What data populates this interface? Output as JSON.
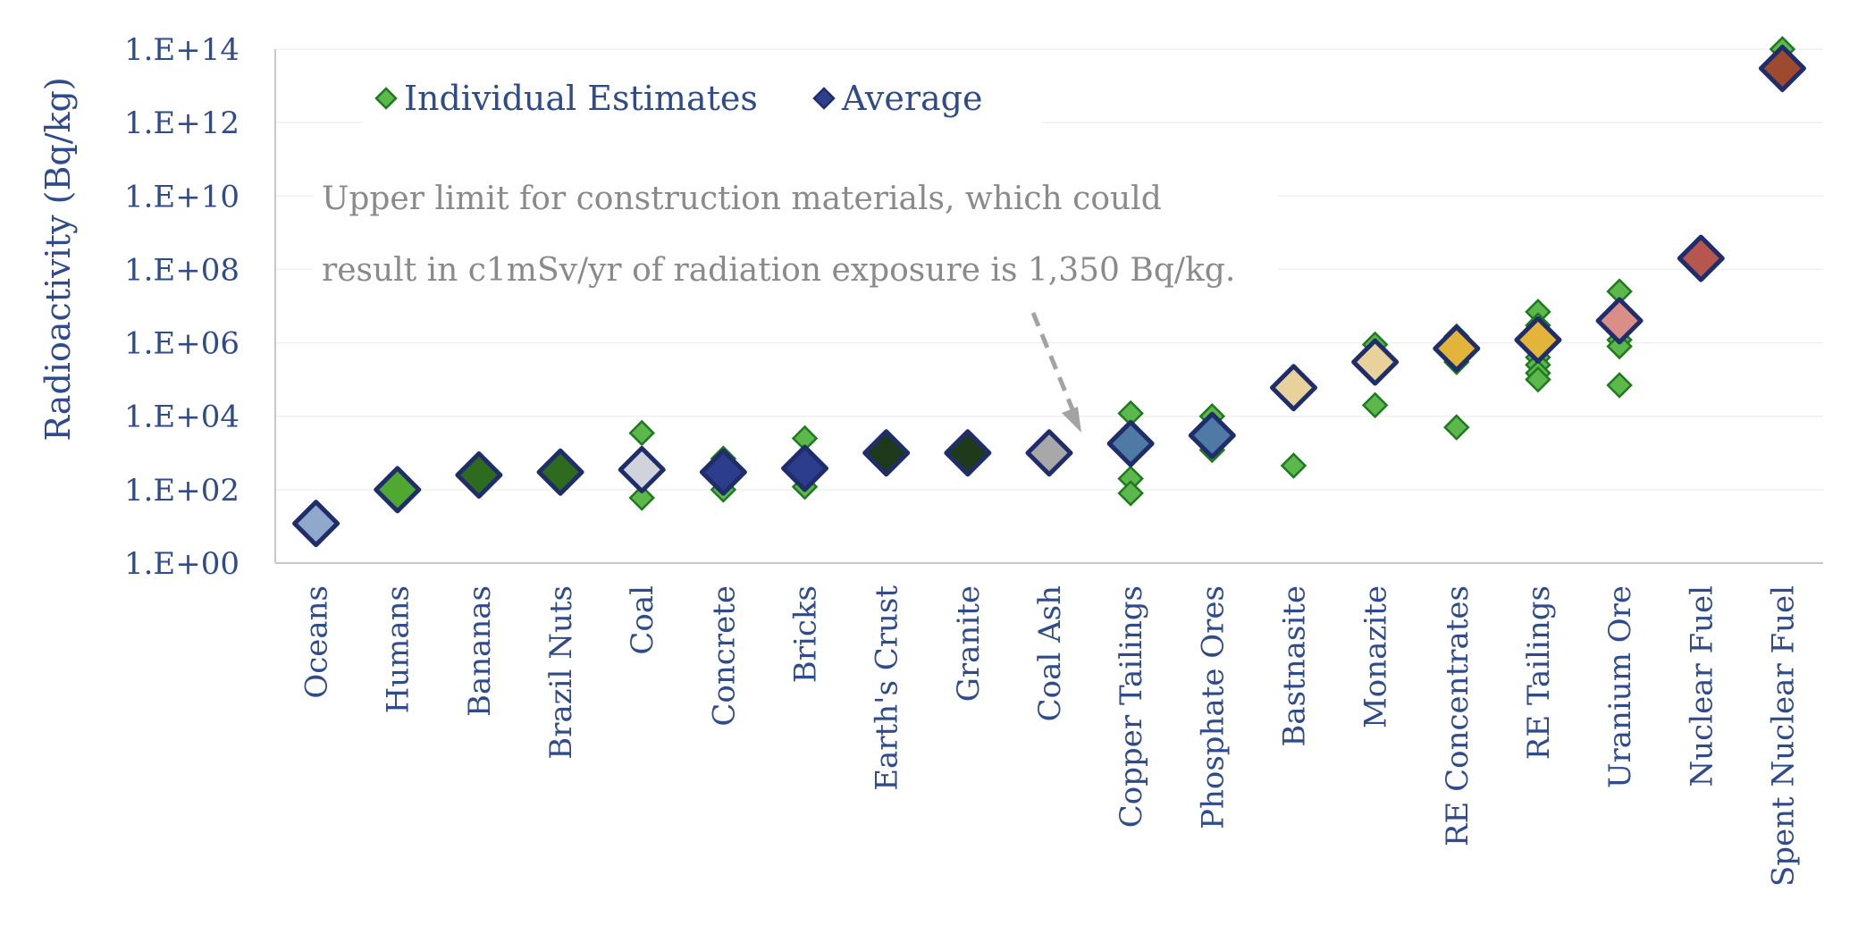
{
  "chart_data": {
    "type": "scatter",
    "scale": "log",
    "ylabel": "Radioactivity (Bq/kg)",
    "ylim": [
      1,
      100000000000000
    ],
    "yticks": [
      {
        "value": 1,
        "label": "1.E+00"
      },
      {
        "value": 100,
        "label": "1.E+02"
      },
      {
        "value": 10000,
        "label": "1.E+04"
      },
      {
        "value": 1000000,
        "label": "1.E+06"
      },
      {
        "value": 100000000,
        "label": "1.E+08"
      },
      {
        "value": 10000000000,
        "label": "1.E+10"
      },
      {
        "value": 1000000000000,
        "label": "1.E+12"
      },
      {
        "value": 100000000000000,
        "label": "1.E+14"
      }
    ],
    "grid": true,
    "legend_position": "top-left",
    "legend": [
      {
        "label": "Individual Estimates",
        "color": "#5cb84a"
      },
      {
        "label": "Average",
        "color": "#2e3f8c"
      }
    ],
    "annotation": {
      "line1": "Upper limit for construction materials, which could",
      "line2": "result in c1mSv/yr of radiation exposure is 1,350 Bq/kg."
    },
    "categories": [
      {
        "name": "Oceans",
        "average": 12,
        "avg_color": "#8fa8cc",
        "estimates": []
      },
      {
        "name": "Humans",
        "average": 100,
        "avg_color": "#4fa832",
        "estimates": [
          100
        ]
      },
      {
        "name": "Bananas",
        "average": 250,
        "avg_color": "#2e6b1f",
        "estimates": [
          150,
          250
        ]
      },
      {
        "name": "Brazil Nuts",
        "average": 300,
        "avg_color": "#2e6b1f",
        "estimates": [
          180,
          300
        ]
      },
      {
        "name": "Coal",
        "average": 350,
        "avg_color": "#d0d3dc",
        "estimates": [
          3500,
          60
        ]
      },
      {
        "name": "Concrete",
        "average": 300,
        "avg_color": "#2b3d8c",
        "estimates": [
          700,
          450,
          100
        ]
      },
      {
        "name": "Bricks",
        "average": 380,
        "avg_color": "#2b3d8c",
        "estimates": [
          2500,
          500,
          120
        ]
      },
      {
        "name": "Earth's Crust",
        "average": 1000,
        "avg_color": "#1f3a1a",
        "estimates": [
          600,
          800
        ]
      },
      {
        "name": "Granite",
        "average": 1000,
        "avg_color": "#1f3a1a",
        "estimates": [
          600,
          800
        ]
      },
      {
        "name": "Coal Ash",
        "average": 1000,
        "avg_color": "#a8a8a8",
        "estimates": [
          600,
          800
        ]
      },
      {
        "name": "Copper Tailings",
        "average": 1800,
        "avg_color": "#4f7aa6",
        "estimates": [
          12000,
          200,
          80
        ]
      },
      {
        "name": "Phosphate Ores",
        "average": 3000,
        "avg_color": "#4f7aa6",
        "estimates": [
          10000,
          1200
        ]
      },
      {
        "name": "Bastnasite",
        "average": 60000,
        "avg_color": "#e8d19a",
        "estimates": [
          450
        ]
      },
      {
        "name": "Monazite",
        "average": 300000,
        "avg_color": "#e8d19a",
        "estimates": [
          900000,
          20000
        ]
      },
      {
        "name": "RE Concentrates",
        "average": 700000,
        "avg_color": "#e3b43a",
        "estimates": [
          1500000,
          300000,
          5000
        ]
      },
      {
        "name": "RE Tailings",
        "average": 1200000,
        "avg_color": "#e3b43a",
        "estimates": [
          7000000,
          3000000,
          800000,
          400000,
          250000,
          150000,
          100000
        ]
      },
      {
        "name": "Uranium Ore",
        "average": 4000000,
        "avg_color": "#d98f88",
        "estimates": [
          25000000,
          2500000,
          1200000,
          800000,
          70000
        ]
      },
      {
        "name": "Nuclear Fuel",
        "average": 200000000,
        "avg_color": "#b5574f",
        "estimates": []
      },
      {
        "name": "Spent Nuclear Fuel",
        "average": 30000000000000,
        "avg_color": "#9e4a2f",
        "estimates": [
          100000000000000,
          15000000000000
        ]
      }
    ]
  }
}
